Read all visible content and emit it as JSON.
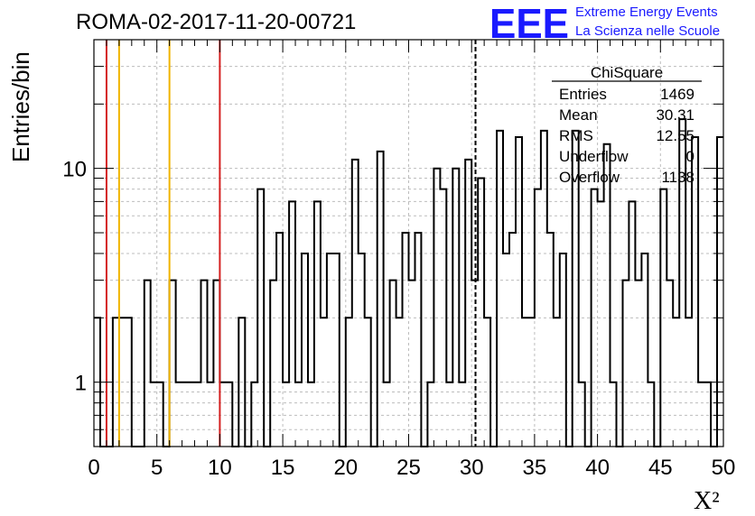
{
  "header": {
    "run_title": "ROMA-02-2017-11-20-00721",
    "logo_letters": "EEE",
    "logo_line1": "Extreme Energy Events",
    "logo_line2": "La Scienza nelle Scuole",
    "logo_color": "#1a1aff"
  },
  "stats_box": {
    "title": "ChiSquare",
    "rows": [
      {
        "label": "Entries",
        "value": "1469"
      },
      {
        "label": "Mean",
        "value": "30.31"
      },
      {
        "label": "RMS",
        "value": "12.55"
      },
      {
        "label": "Underflow",
        "value": "0"
      },
      {
        "label": "Overflow",
        "value": "1138"
      }
    ]
  },
  "chart_data": {
    "type": "histogram",
    "ylabel": "Entries/bin",
    "xlabel": "X²",
    "xlim": [
      0,
      50
    ],
    "ylim": [
      0.5,
      40
    ],
    "log_y": true,
    "grid": true,
    "bin_width": 0.5,
    "x_ticks": [
      0,
      5,
      10,
      15,
      20,
      25,
      30,
      35,
      40,
      45,
      50
    ],
    "y_ticks": [
      1,
      10
    ],
    "bins": [
      [
        0.0,
        2
      ],
      [
        0.5,
        0.5
      ],
      [
        1.0,
        0.5
      ],
      [
        1.5,
        2
      ],
      [
        2.0,
        2
      ],
      [
        2.5,
        2
      ],
      [
        3.0,
        0.5
      ],
      [
        3.5,
        0.5
      ],
      [
        4.0,
        3
      ],
      [
        4.5,
        1
      ],
      [
        5.0,
        1
      ],
      [
        5.5,
        0.5
      ],
      [
        6.0,
        3
      ],
      [
        6.5,
        1
      ],
      [
        7.0,
        1
      ],
      [
        7.5,
        1
      ],
      [
        8.0,
        1
      ],
      [
        8.5,
        3
      ],
      [
        9.0,
        1
      ],
      [
        9.5,
        3
      ],
      [
        10.0,
        1
      ],
      [
        10.5,
        1
      ],
      [
        11.0,
        0.5
      ],
      [
        11.5,
        2
      ],
      [
        12.0,
        0.5
      ],
      [
        12.5,
        1
      ],
      [
        13.0,
        8
      ],
      [
        13.5,
        0.5
      ],
      [
        14.0,
        3
      ],
      [
        14.5,
        5
      ],
      [
        15.0,
        1
      ],
      [
        15.5,
        7
      ],
      [
        16.0,
        1
      ],
      [
        16.5,
        4
      ],
      [
        17.0,
        1
      ],
      [
        17.5,
        7
      ],
      [
        18.0,
        2
      ],
      [
        18.5,
        4
      ],
      [
        19.0,
        4
      ],
      [
        19.5,
        0.5
      ],
      [
        20.0,
        2
      ],
      [
        20.5,
        11
      ],
      [
        21.0,
        4
      ],
      [
        21.5,
        2
      ],
      [
        22.0,
        0.5
      ],
      [
        22.5,
        12
      ],
      [
        23.0,
        1
      ],
      [
        23.5,
        3
      ],
      [
        24.0,
        2
      ],
      [
        24.5,
        5
      ],
      [
        25.0,
        3
      ],
      [
        25.5,
        5
      ],
      [
        26.0,
        0.5
      ],
      [
        26.5,
        1
      ],
      [
        27.0,
        10
      ],
      [
        27.5,
        8
      ],
      [
        28.0,
        1
      ],
      [
        28.5,
        10
      ],
      [
        29.0,
        1
      ],
      [
        29.5,
        11
      ],
      [
        30.0,
        3
      ],
      [
        30.5,
        9
      ],
      [
        31.0,
        2
      ],
      [
        31.5,
        0.5
      ],
      [
        32.0,
        15
      ],
      [
        32.5,
        4
      ],
      [
        33.0,
        5
      ],
      [
        33.5,
        14
      ],
      [
        34.0,
        2
      ],
      [
        34.5,
        2
      ],
      [
        35.0,
        8
      ],
      [
        35.5,
        15
      ],
      [
        36.0,
        5
      ],
      [
        36.5,
        2
      ],
      [
        37.0,
        4
      ],
      [
        37.5,
        0.5
      ],
      [
        38.0,
        15
      ],
      [
        38.5,
        1
      ],
      [
        39.0,
        0.5
      ],
      [
        39.5,
        8
      ],
      [
        40.0,
        7
      ],
      [
        40.5,
        13
      ],
      [
        41.0,
        1
      ],
      [
        41.5,
        0.5
      ],
      [
        42.0,
        3
      ],
      [
        42.5,
        7
      ],
      [
        43.0,
        3
      ],
      [
        43.5,
        4
      ],
      [
        44.0,
        1
      ],
      [
        44.5,
        0.5
      ],
      [
        45.0,
        8
      ],
      [
        45.5,
        3
      ],
      [
        46.0,
        2
      ],
      [
        46.5,
        17
      ],
      [
        47.0,
        2
      ],
      [
        47.5,
        14
      ],
      [
        48.0,
        1
      ],
      [
        48.5,
        1
      ],
      [
        49.0,
        0.5
      ],
      [
        49.5,
        14
      ]
    ],
    "reference_lines": [
      {
        "x": 1,
        "color": "#d42020",
        "style": "solid"
      },
      {
        "x": 2,
        "color": "#f0b400",
        "style": "solid"
      },
      {
        "x": 6,
        "color": "#f0b400",
        "style": "solid"
      },
      {
        "x": 10,
        "color": "#d42020",
        "style": "solid"
      },
      {
        "x": 30.31,
        "color": "#000000",
        "style": "dashed"
      }
    ]
  }
}
